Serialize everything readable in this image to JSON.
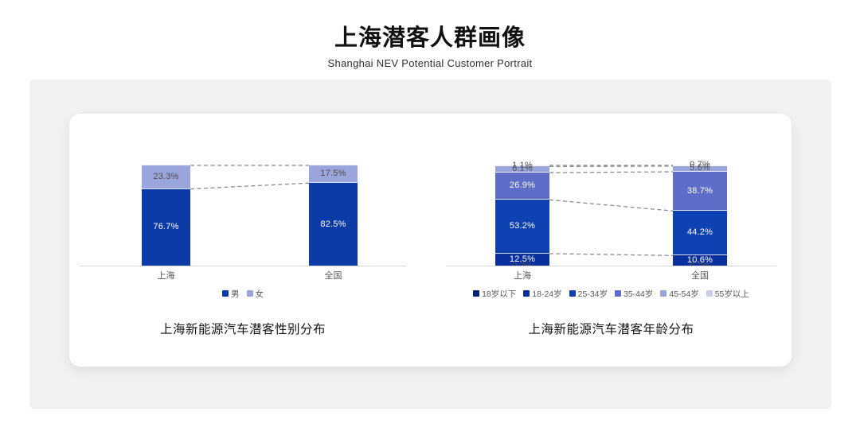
{
  "page": {
    "title": "上海潜客人群画像",
    "subtitle": "Shanghai NEV Potential Customer Portrait"
  },
  "chart_data": [
    {
      "type": "stacked-bar",
      "name": "gender-distribution",
      "title": "上海新能源汽车潜客性别分布",
      "categories": [
        "上海",
        "全国"
      ],
      "series": [
        {
          "name": "男",
          "values": [
            76.7,
            82.5
          ],
          "color": "#0C3BA8",
          "label_color": "#FFFFFF"
        },
        {
          "name": "女",
          "values": [
            23.3,
            17.5
          ],
          "color": "#9AA5DB",
          "label_color": "#4D4D4D"
        }
      ],
      "unit": "%",
      "ylim": [
        0,
        100
      ],
      "grid": false,
      "legend_position": "bottom",
      "connectors": true
    },
    {
      "type": "stacked-bar",
      "name": "age-distribution",
      "title": "上海新能源汽车潜客年龄分布",
      "categories": [
        "上海",
        "全国"
      ],
      "series": [
        {
          "name": "18岁以下",
          "values": [
            0.2,
            0.2
          ],
          "color": "#0A2475",
          "label_color": "#4D4D4D"
        },
        {
          "name": "18-24岁",
          "values": [
            12.5,
            10.6
          ],
          "color": "#0A2F9E",
          "label_color": "#FFFFFF"
        },
        {
          "name": "25-34岁",
          "values": [
            53.2,
            44.2
          ],
          "color": "#0E41B2",
          "label_color": "#FFFFFF"
        },
        {
          "name": "35-44岁",
          "values": [
            26.9,
            38.7
          ],
          "color": "#5E6EC8",
          "label_color": "#FFFFFF"
        },
        {
          "name": "45-54岁",
          "values": [
            6.1,
            5.6
          ],
          "color": "#9AA5DB",
          "label_color": "#4D4D4D"
        },
        {
          "name": "55岁以上",
          "values": [
            1.1,
            0.7
          ],
          "color": "#C9CDEC",
          "label_color": "#4D4D4D"
        }
      ],
      "unit": "%",
      "ylim": [
        0,
        100
      ],
      "grid": false,
      "legend_position": "bottom",
      "connectors": true
    }
  ],
  "colors": {
    "axis_line": "#D8D8D8",
    "connector": "#8C8C8C",
    "panel_bg": "#F1F1F2",
    "card_bg": "#FFFFFF",
    "text_muted": "#595959"
  }
}
